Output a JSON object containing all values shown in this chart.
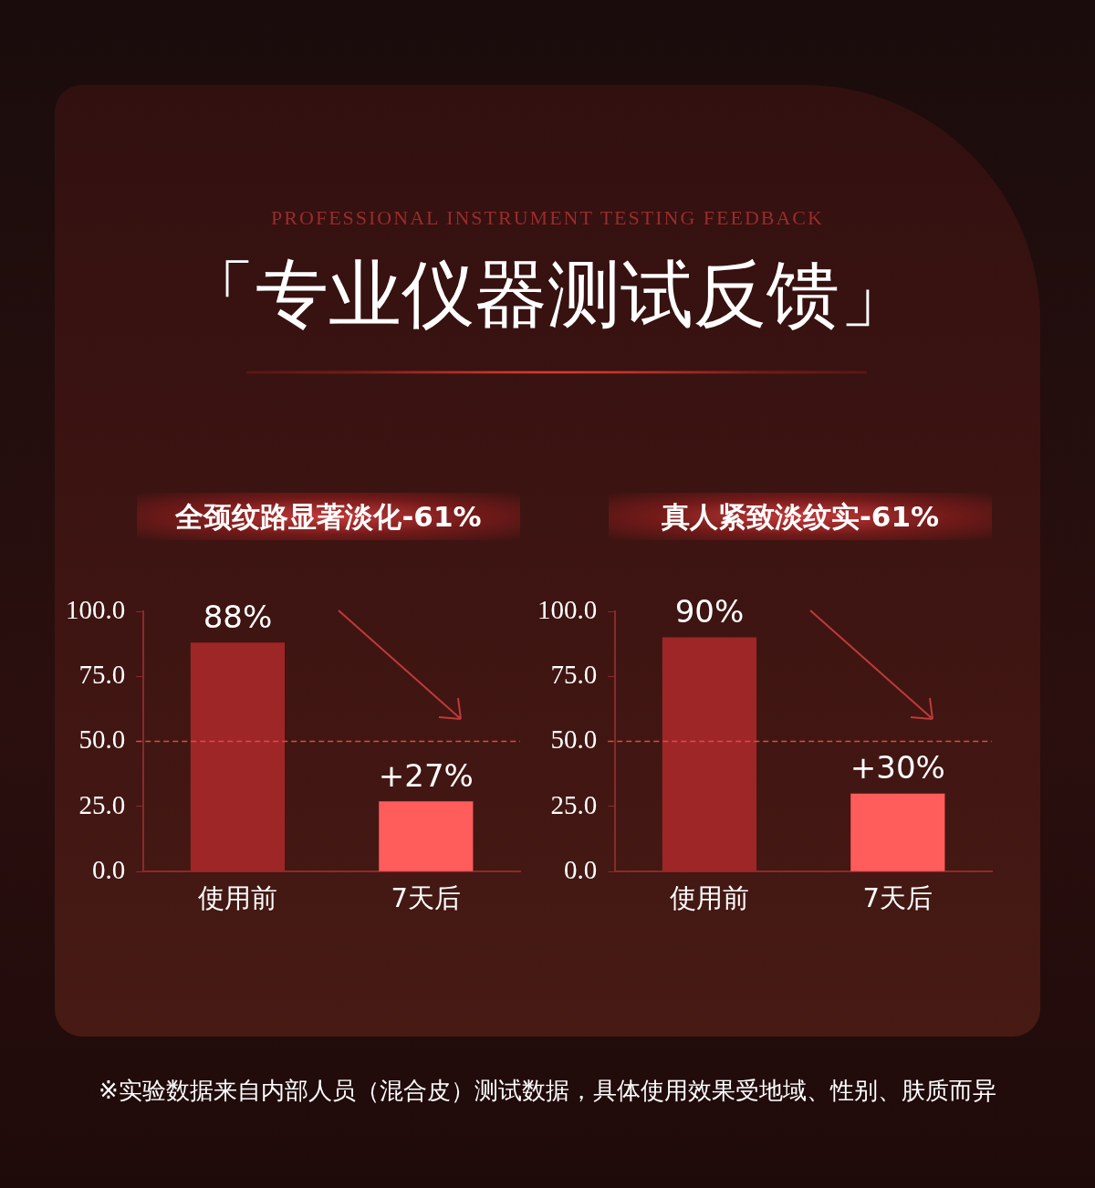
{
  "chart_data": [
    {
      "type": "other",
      "subtitle": "PROFESSIONAL INSTRUMENT TESTING FEEDBACK",
      "title": "「专业仪器测试反馈」",
      "annotations": [
        "※实验数据来自内部人员（混合皮）测试数据，具体使用效果受地域、性别、肤质而异"
      ]
    },
    {
      "type": "bar",
      "title": "全颈纹路显著淡化-61%",
      "categories": [
        "使用前",
        "7天后"
      ],
      "values": [
        88,
        27
      ],
      "colors": [
        "#9e2627",
        "#ff5c5c"
      ],
      "value_labels": [
        "88%",
        "+27%"
      ],
      "ylim": [
        0,
        100
      ],
      "yticks": [
        {
          "value": 0,
          "label": "0.0"
        },
        {
          "value": 25,
          "label": "25.0"
        },
        {
          "value": 50,
          "label": "50.0"
        },
        {
          "value": 75,
          "label": "75.0"
        },
        {
          "value": 100,
          "label": "100.0"
        }
      ],
      "grid": false,
      "legend": false,
      "ref_lines": [
        {
          "axis": "y",
          "value": 50,
          "color": "#e04a4a",
          "line_style": "dashed"
        }
      ]
    },
    {
      "type": "bar",
      "title": "真人紧致淡纹实-61%",
      "categories": [
        "使用前",
        "7天后"
      ],
      "values": [
        90,
        30
      ],
      "colors": [
        "#9e2627",
        "#ff5c5c"
      ],
      "value_labels": [
        "90%",
        "+30%"
      ],
      "ylim": [
        0,
        100
      ],
      "yticks": [
        {
          "value": 0,
          "label": "0.0"
        },
        {
          "value": 25,
          "label": "25.0"
        },
        {
          "value": 50,
          "label": "50.0"
        },
        {
          "value": 75,
          "label": "75.0"
        },
        {
          "value": 100,
          "label": "100.0"
        }
      ],
      "grid": false,
      "legend": false,
      "ref_lines": [
        {
          "axis": "y",
          "value": 50,
          "color": "#e04a4a",
          "line_style": "dashed"
        }
      ]
    }
  ]
}
